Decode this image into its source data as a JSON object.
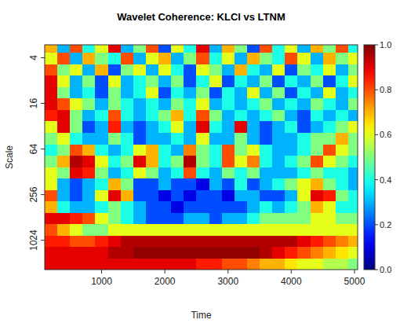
{
  "chart_data": {
    "type": "heatmap",
    "title": "Wavelet Coherence: KLCI vs LTNM",
    "x_label": "Time",
    "y_label": "Scale",
    "log": "y",
    "x": [
      200,
      400,
      600,
      800,
      1000,
      1200,
      1400,
      1600,
      1800,
      2000,
      2200,
      2400,
      2600,
      2800,
      3000,
      3200,
      3400,
      3600,
      3800,
      4000,
      4200,
      4400,
      4600,
      4800,
      5000
    ],
    "y": [
      3,
      4,
      6,
      8,
      12,
      16,
      24,
      32,
      48,
      64,
      96,
      128,
      192,
      256,
      384,
      512,
      768,
      1024,
      1536,
      2048
    ],
    "xlim": [
      100,
      5050
    ],
    "ylim": [
      2.7,
      2500
    ],
    "xticks": [
      1000,
      2000,
      3000,
      4000,
      5000
    ],
    "yticks": [
      4,
      16,
      64,
      256,
      1024
    ],
    "values": [
      [
        0.7,
        0.3,
        0.8,
        0.4,
        0.6,
        0.9,
        0.3,
        0.5,
        0.8,
        0.2,
        0.6,
        0.4,
        0.9,
        0.3,
        0.7,
        0.5,
        0.2,
        0.8,
        0.4,
        0.6,
        0.3,
        0.7,
        0.5,
        0.8,
        0.4
      ],
      [
        0.6,
        0.8,
        0.3,
        0.7,
        0.5,
        0.4,
        0.8,
        0.3,
        0.6,
        0.7,
        0.3,
        0.5,
        0.8,
        0.4,
        0.6,
        0.3,
        0.7,
        0.5,
        0.4,
        0.8,
        0.6,
        0.3,
        0.7,
        0.5,
        0.6
      ],
      [
        0.8,
        0.5,
        0.6,
        0.3,
        0.7,
        0.2,
        0.5,
        0.6,
        0.3,
        0.6,
        0.4,
        0.2,
        0.6,
        0.5,
        0.3,
        0.7,
        0.4,
        0.3,
        0.6,
        0.2,
        0.5,
        0.4,
        0.6,
        0.3,
        0.5
      ],
      [
        0.9,
        0.6,
        0.3,
        0.5,
        0.2,
        0.6,
        0.3,
        0.4,
        0.5,
        0.3,
        0.5,
        0.2,
        0.4,
        0.6,
        0.2,
        0.4,
        0.3,
        0.5,
        0.2,
        0.4,
        0.3,
        0.5,
        0.2,
        0.4,
        0.6
      ],
      [
        0.9,
        0.5,
        0.3,
        0.4,
        0.2,
        0.5,
        0.3,
        0.4,
        0.6,
        0.2,
        0.4,
        0.3,
        0.5,
        0.2,
        0.4,
        0.3,
        0.6,
        0.3,
        0.5,
        0.2,
        0.4,
        0.3,
        0.6,
        0.3,
        0.4
      ],
      [
        0.9,
        0.8,
        0.6,
        0.5,
        0.3,
        0.5,
        0.4,
        0.3,
        0.4,
        0.3,
        0.5,
        0.4,
        0.6,
        0.3,
        0.4,
        0.3,
        0.4,
        0.5,
        0.3,
        0.4,
        0.3,
        0.5,
        0.4,
        0.3,
        0.5
      ],
      [
        0.85,
        0.9,
        0.5,
        0.3,
        0.4,
        0.8,
        0.4,
        0.3,
        0.4,
        0.5,
        0.7,
        0.4,
        0.8,
        0.5,
        0.3,
        0.4,
        0.3,
        0.4,
        0.5,
        0.3,
        0.2,
        0.4,
        0.3,
        0.4,
        0.3
      ],
      [
        0.6,
        0.9,
        0.5,
        0.2,
        0.3,
        0.85,
        0.3,
        0.2,
        0.3,
        0.4,
        0.6,
        0.3,
        0.9,
        0.4,
        0.3,
        0.9,
        0.3,
        0.2,
        0.3,
        0.4,
        0.2,
        0.3,
        0.4,
        0.5,
        0.6
      ],
      [
        0.5,
        0.6,
        0.4,
        0.3,
        0.3,
        0.5,
        0.4,
        0.2,
        0.3,
        0.3,
        0.4,
        0.3,
        0.6,
        0.3,
        0.3,
        0.5,
        0.3,
        0.2,
        0.3,
        0.3,
        0.4,
        0.5,
        0.5,
        0.7,
        0.5
      ],
      [
        0.4,
        0.5,
        0.8,
        0.7,
        0.4,
        0.3,
        0.4,
        0.6,
        0.7,
        0.4,
        0.3,
        0.75,
        0.5,
        0.4,
        0.8,
        0.5,
        0.6,
        0.4,
        0.3,
        0.3,
        0.4,
        0.5,
        0.8,
        0.6,
        0.5
      ],
      [
        0.5,
        0.7,
        0.95,
        0.9,
        0.6,
        0.4,
        0.5,
        0.9,
        0.7,
        0.4,
        0.5,
        0.95,
        0.5,
        0.4,
        0.8,
        0.6,
        0.75,
        0.4,
        0.3,
        0.4,
        0.5,
        0.8,
        0.6,
        0.5,
        0.4
      ],
      [
        0.6,
        0.5,
        0.9,
        0.85,
        0.5,
        0.3,
        0.4,
        0.6,
        0.5,
        0.3,
        0.4,
        0.8,
        0.4,
        0.3,
        0.5,
        0.4,
        0.5,
        0.3,
        0.3,
        0.3,
        0.4,
        0.5,
        0.4,
        0.4,
        0.3
      ],
      [
        0.6,
        0.3,
        0.2,
        0.3,
        0.4,
        0.7,
        0.5,
        0.2,
        0.2,
        0.3,
        0.2,
        0.2,
        0.1,
        0.3,
        0.2,
        0.4,
        0.2,
        0.3,
        0.4,
        0.5,
        0.6,
        0.7,
        0.5,
        0.4,
        0.3
      ],
      [
        0.8,
        0.3,
        0.2,
        0.3,
        0.6,
        0.9,
        0.7,
        0.2,
        0.2,
        0.1,
        0.2,
        0.1,
        0.2,
        0.2,
        0.1,
        0.3,
        0.3,
        0.2,
        0.2,
        0.3,
        0.6,
        0.9,
        0.85,
        0.5,
        0.4
      ],
      [
        0.7,
        0.4,
        0.3,
        0.3,
        0.4,
        0.5,
        0.4,
        0.3,
        0.2,
        0.2,
        0.1,
        0.2,
        0.2,
        0.2,
        0.2,
        0.2,
        0.3,
        0.4,
        0.3,
        0.4,
        0.5,
        0.7,
        0.6,
        0.4,
        0.4
      ],
      [
        0.9,
        0.9,
        0.85,
        0.8,
        0.6,
        0.5,
        0.4,
        0.3,
        0.2,
        0.2,
        0.2,
        0.3,
        0.3,
        0.2,
        0.3,
        0.3,
        0.4,
        0.5,
        0.5,
        0.5,
        0.5,
        0.6,
        0.6,
        0.5,
        0.5
      ],
      [
        0.8,
        0.7,
        0.6,
        0.5,
        0.5,
        0.6,
        0.6,
        0.6,
        0.6,
        0.6,
        0.6,
        0.6,
        0.6,
        0.6,
        0.6,
        0.6,
        0.6,
        0.6,
        0.6,
        0.6,
        0.6,
        0.6,
        0.6,
        0.6,
        0.6
      ],
      [
        0.85,
        0.85,
        0.8,
        0.8,
        0.85,
        0.9,
        0.95,
        0.95,
        0.95,
        0.95,
        0.95,
        0.95,
        0.95,
        0.95,
        0.95,
        0.95,
        0.95,
        0.95,
        0.95,
        0.95,
        0.9,
        0.85,
        0.8,
        0.75,
        0.7
      ],
      [
        0.9,
        0.9,
        0.9,
        0.9,
        0.9,
        0.95,
        0.95,
        0.98,
        0.98,
        0.98,
        0.98,
        0.98,
        0.98,
        0.98,
        0.98,
        0.98,
        0.98,
        0.95,
        0.9,
        0.85,
        0.8,
        0.75,
        0.7,
        0.65,
        0.6
      ],
      [
        0.9,
        0.9,
        0.9,
        0.9,
        0.9,
        0.9,
        0.9,
        0.9,
        0.9,
        0.9,
        0.9,
        0.9,
        0.85,
        0.85,
        0.8,
        0.8,
        0.75,
        0.7,
        0.7,
        0.65,
        0.6,
        0.6,
        0.55,
        0.55,
        0.5
      ]
    ],
    "color_range": [
      0,
      1
    ],
    "color_ticks": [
      {
        "value": 0,
        "label": "0.0"
      },
      {
        "value": 0.2,
        "label": "0.2"
      },
      {
        "value": 0.4,
        "label": "0.4"
      },
      {
        "value": 0.6,
        "label": "0.6"
      },
      {
        "value": 0.8,
        "label": "0.8"
      },
      {
        "value": 1,
        "label": "1.0"
      }
    ]
  }
}
